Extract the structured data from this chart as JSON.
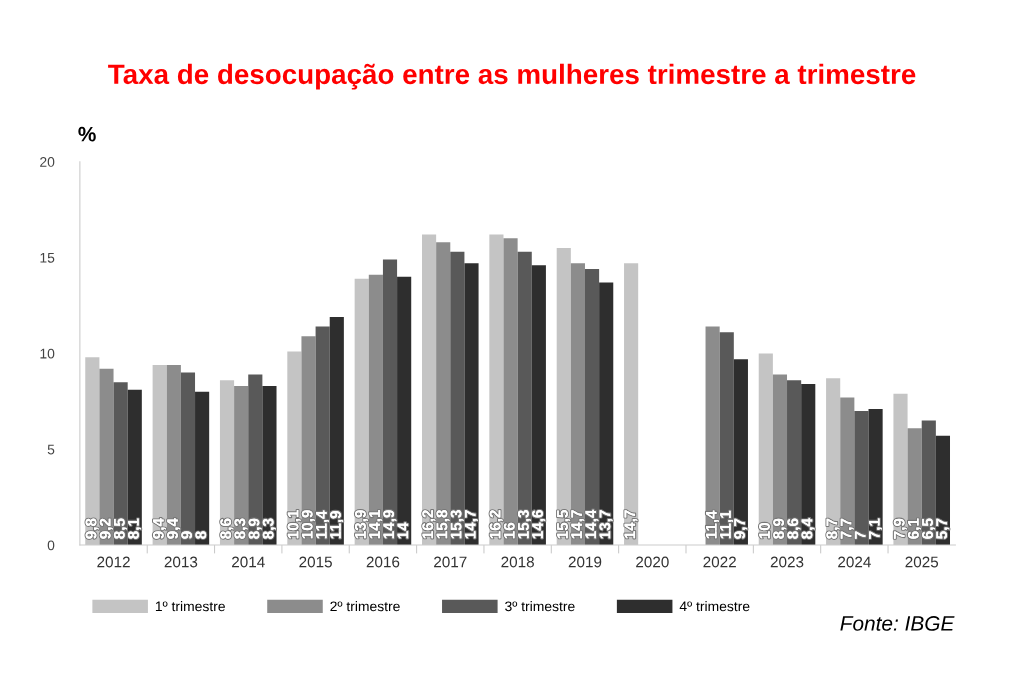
{
  "chart_data": {
    "type": "bar",
    "title": "Taxa de desocupação entre as mulheres trimestre a trimestre",
    "ylabel": "%",
    "categories": [
      "2012",
      "2013",
      "2014",
      "2015",
      "2016",
      "2017",
      "2018",
      "2019",
      "2020",
      "2022",
      "2023",
      "2024",
      "2025"
    ],
    "series": [
      {
        "name": "1º trimestre",
        "color": "#c4c4c4",
        "values": [
          9.8,
          9.4,
          8.6,
          10.1,
          13.9,
          16.2,
          16.2,
          15.5,
          14.7,
          null,
          10,
          8.7,
          7.9
        ],
        "value_labels": [
          "9,8",
          "9,4",
          "8,6",
          "10,1",
          "13,9",
          "16,2",
          "16,2",
          "15,5",
          "14,7",
          null,
          "10",
          "8,7",
          "7,9"
        ]
      },
      {
        "name": "2º trimestre",
        "color": "#8c8c8c",
        "values": [
          9.2,
          9.4,
          8.3,
          10.9,
          14.1,
          15.8,
          16,
          14.7,
          null,
          11.4,
          8.9,
          7.7,
          6.1
        ],
        "value_labels": [
          "9,2",
          "9,4",
          "8,3",
          "10,9",
          "14,1",
          "15,8",
          "16",
          "14,7",
          null,
          "11,4",
          "8,9",
          "7,7",
          "6,1"
        ]
      },
      {
        "name": "3º trimestre",
        "color": "#595959",
        "values": [
          8.5,
          9,
          8.9,
          11.4,
          14.9,
          15.3,
          15.3,
          14.4,
          null,
          11.1,
          8.6,
          7,
          6.5
        ],
        "value_labels": [
          "8,5",
          "9",
          "8,9",
          "11,4",
          "14,9",
          "15,3",
          "15,3",
          "14,4",
          null,
          "11,1",
          "8,6",
          "7",
          "6,5"
        ]
      },
      {
        "name": "4º trimestre",
        "color": "#2e2e2e",
        "values": [
          8.1,
          8,
          8.3,
          11.9,
          14,
          14.7,
          14.6,
          13.7,
          null,
          9.7,
          8.4,
          7.1,
          5.7
        ],
        "value_labels": [
          "8,1",
          "8",
          "8,3",
          "11,9",
          "14",
          "14,7",
          "14,6",
          "13,7",
          null,
          "9,7",
          "8,4",
          "7,1",
          "5,7"
        ]
      }
    ],
    "ylim": [
      0,
      20
    ],
    "yticks": [
      0,
      5,
      10,
      15,
      20
    ],
    "grid": false,
    "legend": "bottom",
    "annotations": [
      "Fonte: IBGE"
    ]
  }
}
